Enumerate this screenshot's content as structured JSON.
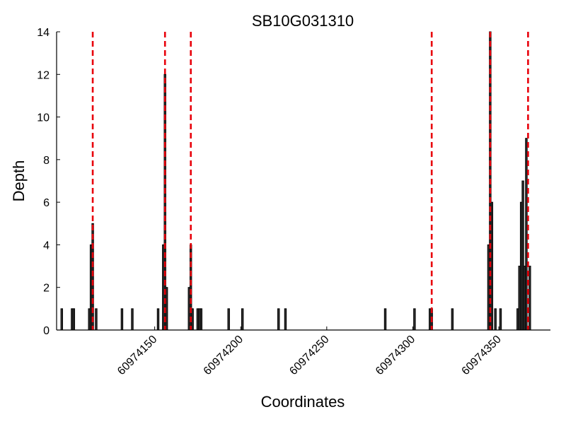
{
  "chart_data": {
    "type": "bar",
    "title": "SB10G031310",
    "xlabel": "Coordinates",
    "ylabel": "Depth",
    "xlim": [
      60974093,
      60974380
    ],
    "ylim": [
      0,
      14
    ],
    "grid": false,
    "legend": "none",
    "xticks": [
      60974150,
      60974200,
      60974250,
      60974300,
      60974350
    ],
    "yticks": [
      0,
      2,
      4,
      6,
      8,
      10,
      12,
      14
    ],
    "bar_color": "#333333",
    "bar_edge_color": "#000000",
    "marker_color": "#e8000b",
    "bars": [
      {
        "x": 60974096,
        "y": 1
      },
      {
        "x": 60974102,
        "y": 1
      },
      {
        "x": 60974103,
        "y": 1
      },
      {
        "x": 60974112,
        "y": 1
      },
      {
        "x": 60974113,
        "y": 4
      },
      {
        "x": 60974114,
        "y": 5
      },
      {
        "x": 60974116,
        "y": 1
      },
      {
        "x": 60974131,
        "y": 1
      },
      {
        "x": 60974137,
        "y": 1
      },
      {
        "x": 60974152,
        "y": 1
      },
      {
        "x": 60974155,
        "y": 4
      },
      {
        "x": 60974156,
        "y": 12
      },
      {
        "x": 60974157,
        "y": 2
      },
      {
        "x": 60974170,
        "y": 2
      },
      {
        "x": 60974171,
        "y": 4
      },
      {
        "x": 60974172,
        "y": 1
      },
      {
        "x": 60974175,
        "y": 1
      },
      {
        "x": 60974176,
        "y": 1
      },
      {
        "x": 60974177,
        "y": 1
      },
      {
        "x": 60974193,
        "y": 1
      },
      {
        "x": 60974201,
        "y": 1
      },
      {
        "x": 60974222,
        "y": 1
      },
      {
        "x": 60974226,
        "y": 1
      },
      {
        "x": 60974284,
        "y": 1
      },
      {
        "x": 60974301,
        "y": 1
      },
      {
        "x": 60974310,
        "y": 1
      },
      {
        "x": 60974311,
        "y": 1
      },
      {
        "x": 60974323,
        "y": 1
      },
      {
        "x": 60974344,
        "y": 4
      },
      {
        "x": 60974345,
        "y": 14
      },
      {
        "x": 60974346,
        "y": 6
      },
      {
        "x": 60974348,
        "y": 1
      },
      {
        "x": 60974351,
        "y": 1
      },
      {
        "x": 60974361,
        "y": 1
      },
      {
        "x": 60974362,
        "y": 3
      },
      {
        "x": 60974363,
        "y": 6
      },
      {
        "x": 60974364,
        "y": 7
      },
      {
        "x": 60974365,
        "y": 3
      },
      {
        "x": 60974366,
        "y": 9
      },
      {
        "x": 60974368,
        "y": 3
      }
    ],
    "markers": [
      60974114,
      60974156,
      60974171,
      60974311,
      60974345,
      60974367
    ]
  }
}
